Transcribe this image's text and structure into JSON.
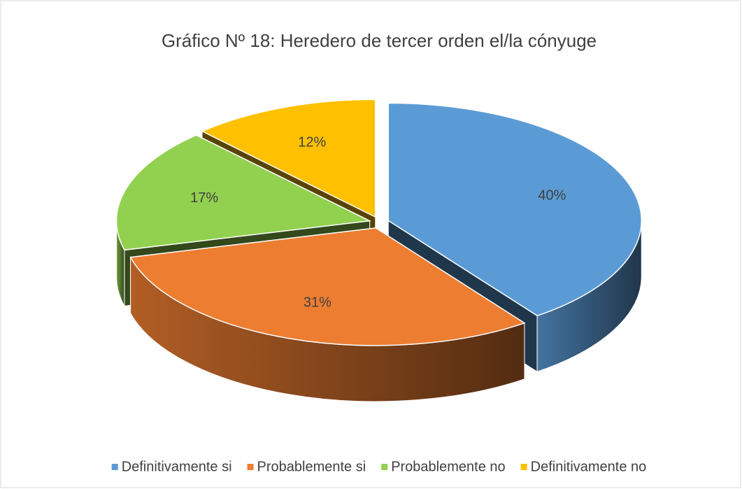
{
  "chart_data": {
    "type": "pie",
    "title": "Gráfico Nº 18: Heredero de tercer orden el/la cónyuge",
    "categories": [
      "Definitivamente si",
      "Probablemente si",
      "Probablemente no",
      "Definitivamente no"
    ],
    "values": [
      40,
      31,
      17,
      12
    ],
    "value_labels": [
      "40%",
      "31%",
      "17%",
      "12%"
    ],
    "colors": [
      "#5b9bd5",
      "#ed7d31",
      "#92d050",
      "#ffc000"
    ],
    "legend": "bottom"
  }
}
